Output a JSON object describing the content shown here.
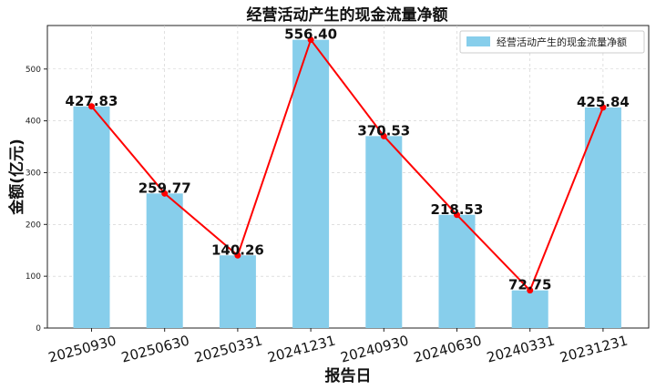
{
  "chart_data": {
    "type": "bar",
    "title": "经营活动产生的现金流量净额",
    "xlabel": "报告日",
    "ylabel": "金额(亿元)",
    "categories": [
      "20250930",
      "20250630",
      "20250331",
      "20241231",
      "20240930",
      "20240630",
      "20240331",
      "20231231"
    ],
    "series": [
      {
        "name": "经营活动产生的现金流量净额",
        "values": [
          427.83,
          259.77,
          140.26,
          556.4,
          370.53,
          218.53,
          72.75,
          425.84
        ]
      }
    ],
    "data_labels": [
      "427.83",
      "259.77",
      "140.26",
      "556.40",
      "370.53",
      "218.53",
      "72.75",
      "425.84"
    ],
    "y_ticks": [
      "0",
      "100",
      "200",
      "300",
      "400",
      "500"
    ],
    "ylim": [
      0,
      584
    ],
    "line_overlay": true,
    "grid": true,
    "legend_position": "top-right",
    "colors": {
      "bar": "#87ceeb",
      "line": "#ff0000"
    }
  }
}
